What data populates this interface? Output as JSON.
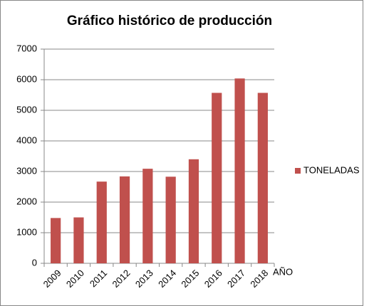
{
  "chart_data": {
    "type": "bar",
    "title": "Gráfico histórico de producción",
    "x_label": "AÑO",
    "categories": [
      "2009",
      "2010",
      "2011",
      "2012",
      "2013",
      "2014",
      "2015",
      "2016",
      "2017",
      "2018"
    ],
    "series": [
      {
        "name": "TONELADAS",
        "color": "#c0504d",
        "values": [
          1480,
          1500,
          2670,
          2840,
          3090,
          2830,
          3400,
          5570,
          6040,
          5570
        ]
      }
    ],
    "ylim": [
      0,
      7000
    ],
    "yticks": [
      0,
      1000,
      2000,
      3000,
      4000,
      5000,
      6000,
      7000
    ],
    "grid": true,
    "legend": "right"
  }
}
